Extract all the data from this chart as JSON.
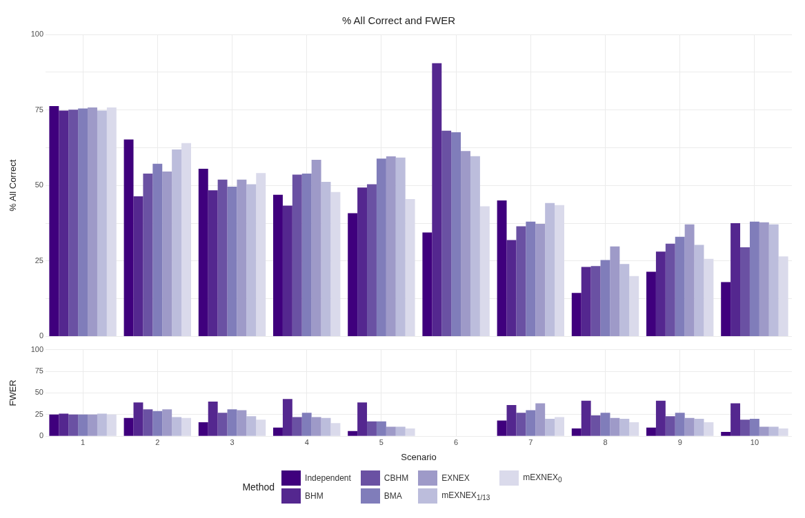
{
  "chart_data": [
    {
      "type": "bar",
      "title": "% All Correct and FWER",
      "ylabel": "% All Correct",
      "categories": [
        "1",
        "2",
        "3",
        "4",
        "5",
        "6",
        "7",
        "8",
        "9",
        "10"
      ],
      "ylim": [
        0,
        100
      ],
      "yticks": [
        0,
        {
          "value": 12.5,
          "label": null
        },
        25,
        {
          "value": 37.5,
          "label": null
        },
        50,
        {
          "value": 62.5,
          "label": null
        },
        75,
        {
          "value": 87.5,
          "label": null
        },
        100
      ],
      "grid": true,
      "tick_labels": "y",
      "series": [
        {
          "color": "#3f007d",
          "values": [
            76.3,
            65.2,
            55.5,
            46.9,
            40.8,
            34.4,
            45.0,
            14.4,
            21.4,
            18.0
          ]
        },
        {
          "color": "#54278f",
          "values": [
            74.8,
            46.4,
            48.4,
            43.3,
            49.3,
            90.5,
            31.9,
            23.0,
            28.1,
            37.5
          ]
        },
        {
          "color": "#6a51a3",
          "values": [
            75.1,
            53.9,
            51.9,
            53.6,
            50.4,
            68.1,
            36.5,
            23.3,
            30.7,
            29.5
          ]
        },
        {
          "color": "#807dba",
          "values": [
            75.5,
            57.2,
            49.6,
            53.9,
            58.9,
            67.6,
            38.0,
            25.3,
            33.0,
            38.0
          ]
        },
        {
          "color": "#9e9ac8",
          "values": [
            75.8,
            54.6,
            51.9,
            58.5,
            59.6,
            61.4,
            37.3,
            29.8,
            37.1,
            37.8
          ]
        },
        {
          "color": "#bcbddc",
          "values": [
            74.8,
            61.9,
            50.4,
            51.2,
            59.2,
            59.7,
            44.2,
            24.0,
            30.3,
            37.1
          ]
        },
        {
          "color": "#dadaeb",
          "values": [
            75.8,
            64.0,
            54.1,
            47.8,
            45.5,
            43.1,
            43.5,
            20.0,
            25.7,
            26.5
          ]
        }
      ]
    },
    {
      "type": "bar",
      "xlabel": "Scenario",
      "ylabel": "FWER",
      "categories": [
        "1",
        "2",
        "3",
        "4",
        "5",
        "6",
        "7",
        "8",
        "9",
        "10"
      ],
      "ylim": [
        0,
        100
      ],
      "yticks": [
        0,
        25,
        50,
        75,
        100
      ],
      "grid": true,
      "legend": "bottom",
      "legend_title": "Method",
      "series": [
        {
          "name": "Independent",
          "color": "#3f007d",
          "values": [
            25,
            21,
            16,
            10,
            6,
            null,
            18,
            9,
            10,
            5
          ]
        },
        {
          "name": "BHM",
          "color": "#54278f",
          "values": [
            26,
            39,
            40,
            43,
            39,
            null,
            36,
            41,
            41,
            38
          ]
        },
        {
          "name": "CBHM",
          "color": "#6a51a3",
          "values": [
            25,
            31,
            27,
            22,
            17,
            null,
            27,
            24,
            23,
            19
          ]
        },
        {
          "name": "BMA",
          "color": "#807dba",
          "values": [
            25,
            29,
            31,
            27,
            17,
            null,
            30,
            27,
            27,
            20
          ]
        },
        {
          "name": "EXNEX",
          "color": "#9e9ac8",
          "values": [
            25,
            31,
            30,
            22,
            11,
            null,
            38,
            21,
            21,
            11
          ]
        },
        {
          "name": "mEXNEX$_{1/13}$",
          "color": "#bcbddc",
          "values": [
            26,
            22,
            23,
            21,
            11,
            null,
            20,
            20,
            20,
            11
          ]
        },
        {
          "name": "mEXNEX$_{0}$",
          "color": "#dadaeb",
          "values": [
            25,
            21,
            19,
            15,
            9,
            null,
            22,
            16,
            16,
            9
          ]
        }
      ]
    }
  ]
}
